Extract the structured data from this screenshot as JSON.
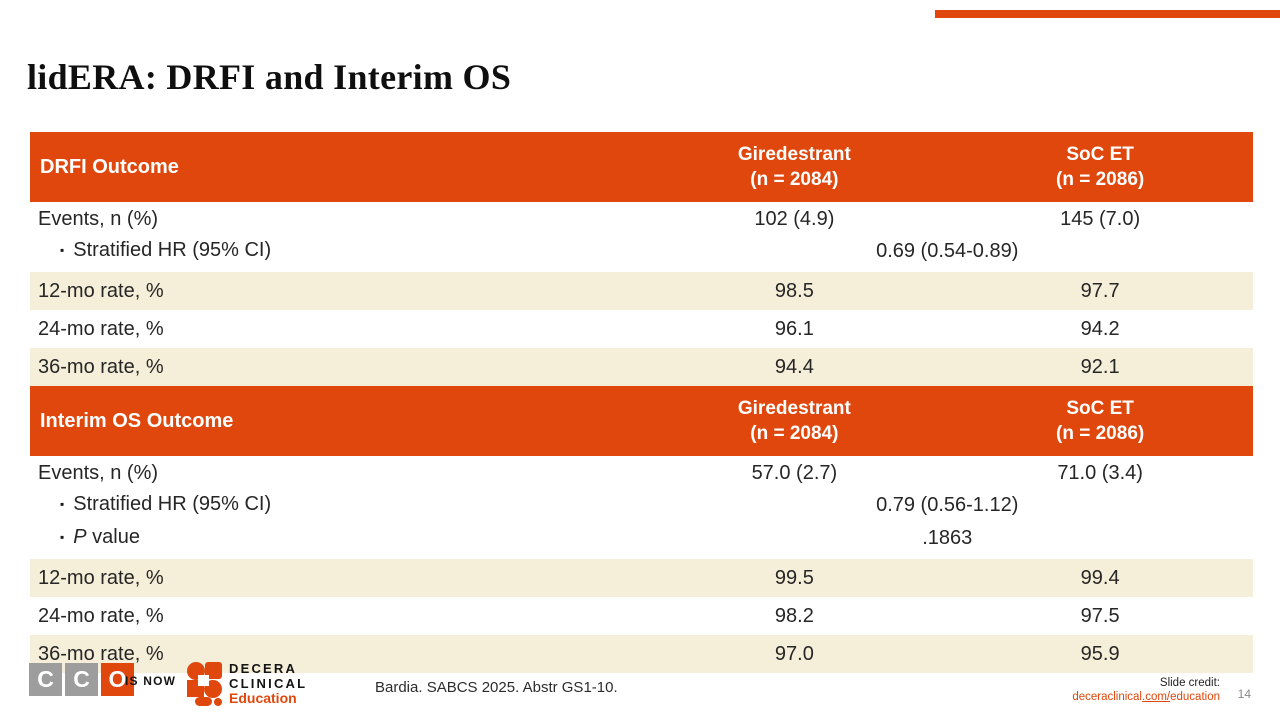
{
  "slide": {
    "title": "lidERA: DRFI and Interim OS",
    "page_number": "14"
  },
  "colors": {
    "accent": "#e0470c",
    "shade": "#f5eed8",
    "gray_square": "#9d9d9d",
    "white": "#ffffff"
  },
  "icons": {
    "bullet": "▪"
  },
  "table": {
    "sections": [
      {
        "title": "DRFI Outcome",
        "columns": [
          {
            "name": "Giredestrant",
            "n": "(n = 2084)"
          },
          {
            "name": "SoC ET",
            "n": "(n = 2086)"
          }
        ],
        "rows": [
          {
            "kind": "group",
            "shade": false,
            "lines": [
              {
                "label": "Events, n (%)",
                "indent": false,
                "values": [
                  "102 (4.9)",
                  "145 (7.0)"
                ]
              },
              {
                "label": "Stratified HR (95% CI)",
                "indent": true,
                "span": "0.69 (0.54-0.89)"
              }
            ]
          },
          {
            "kind": "simple",
            "shade": true,
            "label": "12-mo rate, %",
            "values": [
              "98.5",
              "97.7"
            ]
          },
          {
            "kind": "simple",
            "shade": false,
            "label": "24-mo rate, %",
            "values": [
              "96.1",
              "94.2"
            ]
          },
          {
            "kind": "simple",
            "shade": true,
            "label": "36-mo rate, %",
            "values": [
              "94.4",
              "92.1"
            ]
          }
        ]
      },
      {
        "title": "Interim OS Outcome",
        "columns": [
          {
            "name": "Giredestrant",
            "n": "(n = 2084)"
          },
          {
            "name": "SoC ET",
            "n": "(n = 2086)"
          }
        ],
        "rows": [
          {
            "kind": "group",
            "shade": false,
            "lines": [
              {
                "label": "Events, n (%)",
                "indent": false,
                "values": [
                  "57.0 (2.7)",
                  "71.0 (3.4)"
                ]
              },
              {
                "label": "Stratified HR (95% CI)",
                "indent": true,
                "span": "0.79 (0.56-1.12)"
              },
              {
                "label": "value",
                "italic_prefix": "P",
                "indent": true,
                "span": ".1863"
              }
            ]
          },
          {
            "kind": "simple",
            "shade": true,
            "label": "12-mo rate, %",
            "values": [
              "99.5",
              "99.4"
            ]
          },
          {
            "kind": "simple",
            "shade": false,
            "label": "24-mo rate, %",
            "values": [
              "98.2",
              "97.5"
            ]
          },
          {
            "kind": "simple",
            "shade": true,
            "label": "36-mo rate, %",
            "values": [
              "97.0",
              "95.9"
            ]
          }
        ]
      }
    ]
  },
  "chart_data": {
    "type": "table",
    "tables": [
      {
        "title": "DRFI Outcome",
        "columns": [
          "DRFI Outcome",
          "Giredestrant (n = 2084)",
          "SoC ET (n = 2086)"
        ],
        "rows": [
          [
            "Events, n (%)",
            "102 (4.9)",
            "145 (7.0)"
          ],
          [
            "Stratified HR (95% CI)",
            "0.69 (0.54-0.89)",
            ""
          ],
          [
            "12-mo rate, %",
            "98.5",
            "97.7"
          ],
          [
            "24-mo rate, %",
            "96.1",
            "94.2"
          ],
          [
            "36-mo rate, %",
            "94.4",
            "92.1"
          ]
        ]
      },
      {
        "title": "Interim OS Outcome",
        "columns": [
          "Interim OS Outcome",
          "Giredestrant (n = 2084)",
          "SoC ET (n = 2086)"
        ],
        "rows": [
          [
            "Events, n (%)",
            "57.0 (2.7)",
            "71.0 (3.4)"
          ],
          [
            "Stratified HR (95% CI)",
            "0.79 (0.56-1.12)",
            ""
          ],
          [
            "P value",
            ".1863",
            ""
          ],
          [
            "12-mo rate, %",
            "99.5",
            "99.4"
          ],
          [
            "24-mo rate, %",
            "98.2",
            "97.5"
          ],
          [
            "36-mo rate, %",
            "97.0",
            "95.9"
          ]
        ]
      }
    ]
  },
  "footer": {
    "cco_letters": [
      "C",
      "C",
      "O"
    ],
    "is_now": "IS NOW",
    "decera": {
      "line1": "DECERA",
      "line2": "CLINICAL",
      "line3": "Education"
    },
    "citation": "Bardia. SABCS 2025. Abstr GS1-10.",
    "credit_label": "Slide credit:",
    "credit_link": {
      "pre": "deceraclinical",
      "mid": ".com/",
      "post": "education"
    }
  }
}
